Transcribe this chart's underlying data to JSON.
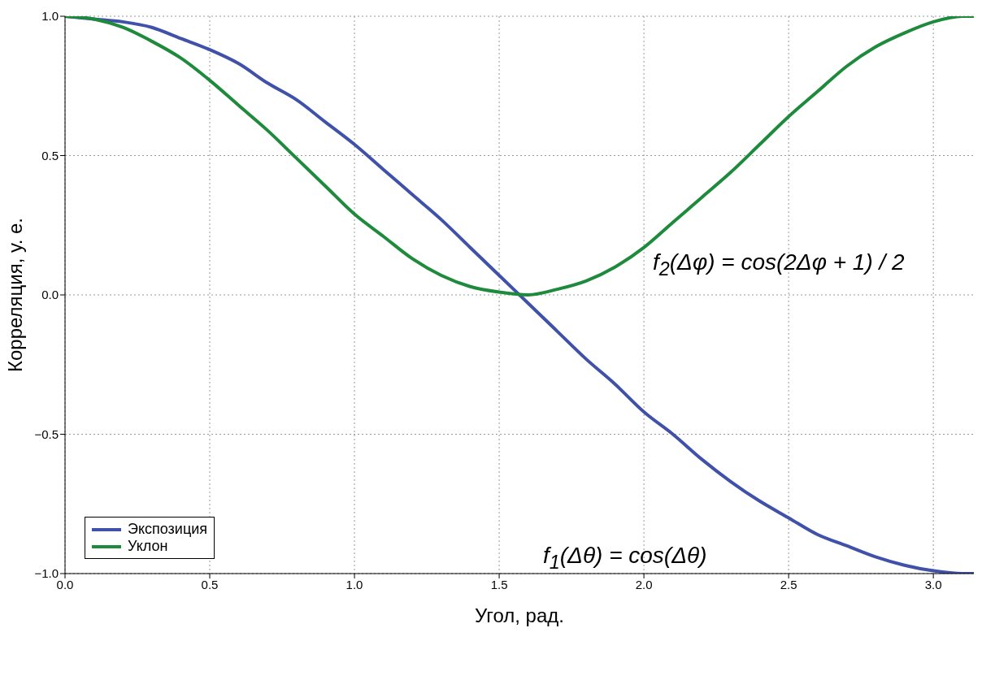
{
  "chart_data": {
    "type": "line",
    "xlabel": "Угол, рад.",
    "ylabel": "Корреляция, у. е.",
    "x": [
      0,
      0.1,
      0.2,
      0.3,
      0.4,
      0.5,
      0.6,
      0.7,
      0.8,
      0.9,
      1.0,
      1.1,
      1.2,
      1.3,
      1.4,
      1.5,
      1.6,
      1.7,
      1.8,
      1.9,
      2.0,
      2.1,
      2.2,
      2.3,
      2.4,
      2.5,
      2.6,
      2.7,
      2.8,
      2.9,
      3.0,
      3.1,
      3.14
    ],
    "series": [
      {
        "name": "Экспозиция",
        "color": "#3f51a8",
        "values": [
          1,
          0.99,
          0.98,
          0.96,
          0.92,
          0.88,
          0.83,
          0.76,
          0.7,
          0.62,
          0.54,
          0.45,
          0.36,
          0.27,
          0.17,
          0.07,
          -0.03,
          -0.13,
          -0.23,
          -0.32,
          -0.42,
          -0.5,
          -0.59,
          -0.67,
          -0.74,
          -0.8,
          -0.86,
          -0.9,
          -0.94,
          -0.97,
          -0.99,
          -1,
          -1
        ]
      },
      {
        "name": "Уклон",
        "color": "#1e8a3c",
        "values": [
          1,
          0.99,
          0.96,
          0.91,
          0.85,
          0.77,
          0.68,
          0.59,
          0.49,
          0.39,
          0.29,
          0.21,
          0.13,
          0.07,
          0.03,
          0.01,
          0,
          0.02,
          0.05,
          0.1,
          0.17,
          0.26,
          0.35,
          0.44,
          0.54,
          0.64,
          0.73,
          0.82,
          0.89,
          0.94,
          0.98,
          1,
          1
        ]
      }
    ],
    "xlim": [
      0,
      3.14
    ],
    "xticks": [
      {
        "value": 0,
        "label": "0.0"
      },
      0.5,
      {
        "value": 1,
        "label": "1.0"
      },
      1.5,
      {
        "value": 2,
        "label": "2.0"
      },
      2.5,
      {
        "value": 3,
        "label": "3.0"
      }
    ],
    "ylim": [
      -1,
      1
    ],
    "yticks": [
      {
        "value": -1,
        "label": "−1.0"
      },
      {
        "value": -0.5,
        "label": "−0.5"
      },
      {
        "value": 0,
        "label": "0.0"
      },
      0.5,
      {
        "value": 1,
        "label": "1.0"
      }
    ],
    "grid": true,
    "legend": "bottom left",
    "line_style": "solid",
    "marker": "none",
    "annotations": [
      "f$_{2}$(Δφ) = cos(2Δφ + 1) / 2",
      "f$_{1}$(Δθ) = cos(Δθ)"
    ]
  }
}
